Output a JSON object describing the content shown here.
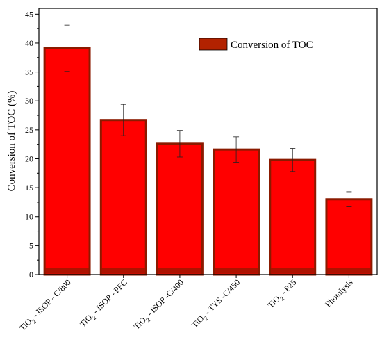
{
  "chart_data": {
    "type": "bar",
    "categories": [
      {
        "main": "TiO",
        "sub": "2",
        "rest": " - ISOP - C/800"
      },
      {
        "main": "TiO",
        "sub": "2",
        "rest": " - ISOP - PFC"
      },
      {
        "main": "TiO",
        "sub": "2",
        "rest": " - ISOP -C/400"
      },
      {
        "main": "TiO",
        "sub": "2",
        "rest": " - TYS -C/450"
      },
      {
        "main": "TiO",
        "sub": "2",
        "rest": " - P25"
      },
      {
        "main": "Photolysis",
        "sub": "",
        "rest": ""
      }
    ],
    "series": [
      {
        "name": "Conversion of TOC",
        "values": [
          39.1,
          26.7,
          22.6,
          21.6,
          19.8,
          13.0
        ],
        "errors": [
          4.0,
          2.7,
          2.3,
          2.2,
          2.0,
          1.3
        ]
      }
    ],
    "title": "",
    "xlabel": "",
    "ylabel": "Conversion of TOC (%)",
    "ylim": [
      0,
      46
    ],
    "yticks": [
      "0",
      "5",
      "10",
      "15",
      "20",
      "25",
      "30",
      "35",
      "40",
      "45"
    ],
    "legend_placement": "top-right",
    "grid": false,
    "colors": {
      "bar_fill": "#ff0000",
      "bar_edge": "#8b1a00",
      "legend_swatch": "#b22200",
      "axis": "#000000"
    }
  }
}
